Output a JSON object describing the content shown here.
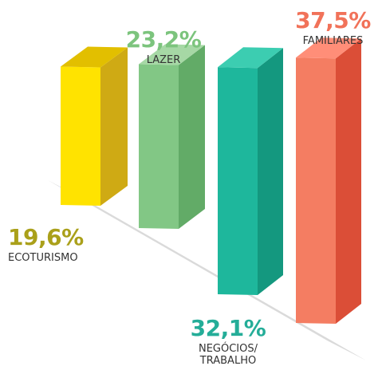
{
  "chart_data": {
    "type": "bar",
    "categories": [
      "ECOTURISMO",
      "LAZER",
      "NEGÓCIOS/\nTRABALHO",
      "FAMILIARES"
    ],
    "values": [
      19.6,
      23.2,
      32.1,
      37.5
    ],
    "value_labels": [
      "19,6%",
      "23,2%",
      "32,1%",
      "37,5%"
    ],
    "unit": "%",
    "style": "3d-isometric",
    "bar_colors": [
      {
        "front": "#ffe300",
        "side": "#cfaa14",
        "top": "#e2bf00",
        "text": "#aaa01a"
      },
      {
        "front": "#82c785",
        "side": "#62ab67",
        "top": "#a6d8a5",
        "text": "#7cc47d"
      },
      {
        "front": "#1eb79c",
        "side": "#14987f",
        "top": "#3ccdb1",
        "text": "#24ad98"
      },
      {
        "front": "#f47d62",
        "side": "#db4e37",
        "top": "#ff8e78",
        "text": "#f17259"
      }
    ],
    "shadow_color": "#dadada",
    "legend": "none",
    "grid": false
  }
}
